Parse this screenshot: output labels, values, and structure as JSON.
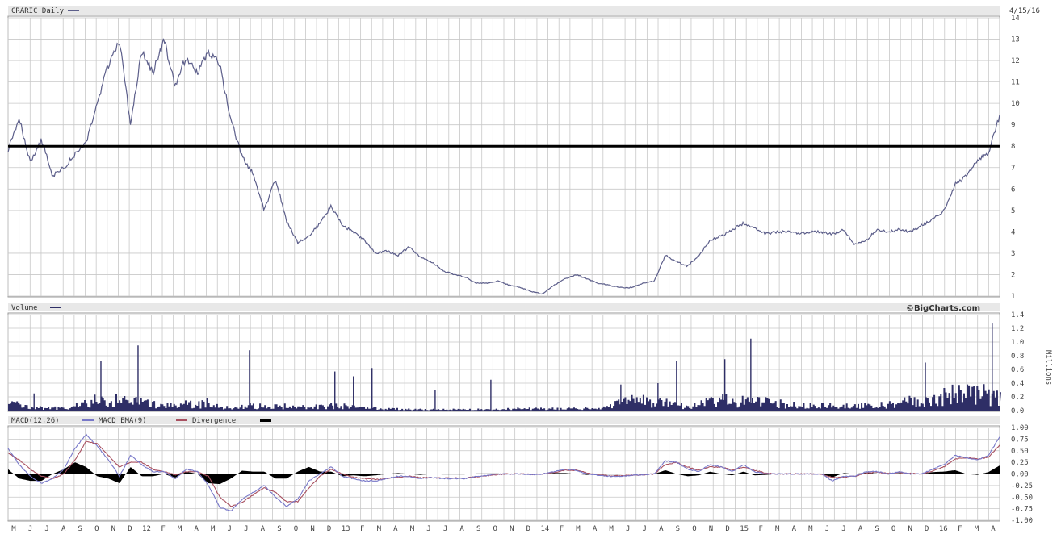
{
  "header": {
    "price_title": "CRARIC Daily",
    "date": "4/15/16",
    "volume_title": "Volume",
    "brand": "©BigCharts.com",
    "macd_title": "MACD(12,26)",
    "macd_ema_title": "MACD EMA(9)",
    "divergence_title": "Divergence",
    "volume_unit": "Millions"
  },
  "colors": {
    "price_line": "#5c5e8a",
    "reference_line": "#000000",
    "volume_bar": "#2e2e66",
    "macd_line": "#7777c8",
    "macd_ema_line": "#a85060",
    "divergence": "#000000",
    "grid": "#c8c8c8",
    "header_bg": "#e8e8e8"
  },
  "chart_data": [
    {
      "type": "line",
      "title": "CRARIC Daily",
      "ylim": [
        1,
        14
      ],
      "yticks": [
        "1",
        "2",
        "3",
        "4",
        "5",
        "6",
        "7",
        "8",
        "9",
        "10",
        "11",
        "12",
        "13",
        "14"
      ],
      "reference_line": 8,
      "grid": true,
      "x": [
        0,
        3,
        6,
        9,
        12,
        15,
        18,
        21,
        24,
        27,
        30,
        33,
        36,
        39,
        42,
        45,
        48,
        51,
        54,
        57,
        60,
        63,
        66,
        69,
        72,
        75,
        78,
        81,
        84,
        87,
        90,
        93,
        96,
        99,
        102,
        105,
        108,
        111,
        114,
        117,
        120,
        123,
        126,
        129,
        132,
        135,
        138,
        141,
        144,
        147,
        150,
        153,
        156,
        159,
        162,
        165,
        168,
        171,
        174,
        177,
        180,
        183,
        186,
        189,
        192,
        195,
        198,
        201,
        204,
        207,
        210,
        213,
        216,
        219,
        222,
        225,
        228,
        231,
        234,
        237,
        240,
        243,
        246,
        249,
        252,
        255,
        258,
        261,
        264,
        267
      ],
      "series": [
        {
          "values": [
            7.8,
            9.3,
            7.2,
            8.3,
            6.6,
            7.0,
            7.6,
            8.1,
            10.0,
            11.8,
            12.9,
            9.0,
            12.5,
            11.4,
            13.0,
            10.8,
            12.2,
            11.4,
            12.4,
            11.8,
            9.2,
            7.5,
            6.7,
            5.0,
            6.5,
            4.5,
            3.5,
            3.8,
            4.4,
            5.2,
            4.3,
            4.0,
            3.6,
            3.0,
            3.1,
            2.9,
            3.3,
            2.8,
            2.6,
            2.2,
            2.0,
            1.9,
            1.6,
            1.6,
            1.7,
            1.5,
            1.4,
            1.2,
            1.1,
            1.5,
            1.8,
            2.0,
            1.8,
            1.6,
            1.5,
            1.4,
            1.4,
            1.6,
            1.7,
            2.9,
            2.6,
            2.4,
            2.9,
            3.6,
            3.8,
            4.1,
            4.4,
            4.2,
            3.9,
            4.0,
            4.0,
            3.9,
            4.0,
            4.0,
            3.9,
            4.1,
            3.4,
            3.6,
            4.1,
            4.0,
            4.1,
            4.0,
            4.3,
            4.6,
            5.0,
            6.2,
            6.6,
            7.3,
            7.7,
            9.4
          ]
        }
      ]
    },
    {
      "type": "bar",
      "title": "Volume",
      "ylabel": "Millions",
      "ylim": [
        0,
        1.4
      ],
      "yticks": [
        "0.0",
        "0.2",
        "0.4",
        "0.6",
        "0.8",
        "1.0",
        "1.2",
        "1.4"
      ],
      "grid": true,
      "base_level": [
        0.12,
        0.05,
        0.04,
        0.07,
        0.17,
        0.16,
        0.16,
        0.07,
        0.1,
        0.12,
        0.04,
        0.08,
        0.06,
        0.08,
        0.06,
        0.08,
        0.04,
        0.03,
        0.025,
        0.02,
        0.02,
        0.02,
        0.02,
        0.03,
        0.03,
        0.03,
        0.04,
        0.04,
        0.16,
        0.16,
        0.11,
        0.07,
        0.17,
        0.15,
        0.15,
        0.11,
        0.08,
        0.08,
        0.07,
        0.09,
        0.1,
        0.15,
        0.18,
        0.27,
        0.28,
        0.2
      ],
      "spikes": [
        {
          "x": 7,
          "value": 0.25
        },
        {
          "x": 25,
          "value": 0.72
        },
        {
          "x": 35,
          "value": 0.95
        },
        {
          "x": 65,
          "value": 0.88
        },
        {
          "x": 88,
          "value": 0.57
        },
        {
          "x": 93,
          "value": 0.5
        },
        {
          "x": 98,
          "value": 0.62
        },
        {
          "x": 115,
          "value": 0.3
        },
        {
          "x": 130,
          "value": 0.45
        },
        {
          "x": 165,
          "value": 0.38
        },
        {
          "x": 175,
          "value": 0.4
        },
        {
          "x": 180,
          "value": 0.72
        },
        {
          "x": 193,
          "value": 0.75
        },
        {
          "x": 200,
          "value": 1.05
        },
        {
          "x": 247,
          "value": 0.7
        },
        {
          "x": 265,
          "value": 1.27
        }
      ]
    },
    {
      "type": "line",
      "title": "MACD(12,26)",
      "ylim": [
        -1.0,
        1.0
      ],
      "yticks": [
        "-1.00",
        "-0.75",
        "-0.50",
        "-0.25",
        "0.00",
        "0.25",
        "0.50",
        "0.75",
        "1.00"
      ],
      "grid": true,
      "x": [
        0,
        3,
        6,
        9,
        12,
        15,
        18,
        21,
        24,
        27,
        30,
        33,
        36,
        39,
        42,
        45,
        48,
        51,
        54,
        57,
        60,
        63,
        66,
        69,
        72,
        75,
        78,
        81,
        84,
        87,
        90,
        93,
        96,
        99,
        102,
        105,
        108,
        111,
        114,
        117,
        120,
        123,
        126,
        129,
        132,
        135,
        138,
        141,
        144,
        147,
        150,
        153,
        156,
        159,
        162,
        165,
        168,
        171,
        174,
        177,
        180,
        183,
        186,
        189,
        192,
        195,
        198,
        201,
        204,
        207,
        210,
        213,
        216,
        219,
        222,
        225,
        228,
        231,
        234,
        237,
        240,
        243,
        246,
        249,
        252,
        255,
        258,
        261,
        264,
        267
      ],
      "series": [
        {
          "name": "MACD(12,26)",
          "values": [
            0.55,
            0.2,
            -0.05,
            -0.2,
            -0.1,
            0.1,
            0.55,
            0.85,
            0.6,
            0.3,
            -0.05,
            0.4,
            0.2,
            0.05,
            0.05,
            -0.1,
            0.1,
            0.05,
            -0.25,
            -0.72,
            -0.8,
            -0.55,
            -0.4,
            -0.25,
            -0.5,
            -0.7,
            -0.55,
            -0.15,
            0.0,
            0.15,
            -0.05,
            -0.1,
            -0.15,
            -0.15,
            -0.1,
            -0.05,
            -0.05,
            -0.1,
            -0.08,
            -0.1,
            -0.1,
            -0.1,
            -0.05,
            -0.03,
            0.0,
            0.0,
            0.0,
            -0.02,
            0.0,
            0.05,
            0.1,
            0.08,
            0.0,
            -0.03,
            -0.05,
            -0.05,
            -0.03,
            -0.02,
            0.0,
            0.28,
            0.25,
            0.1,
            0.05,
            0.2,
            0.15,
            0.05,
            0.2,
            0.05,
            0.0,
            0.0,
            0.0,
            0.0,
            0.0,
            0.0,
            -0.15,
            -0.05,
            -0.05,
            0.05,
            0.05,
            0.0,
            0.05,
            0.0,
            0.0,
            0.1,
            0.2,
            0.4,
            0.35,
            0.3,
            0.4,
            0.8
          ]
        },
        {
          "name": "MACD EMA(9)",
          "values": [
            0.45,
            0.3,
            0.1,
            -0.05,
            -0.1,
            0.0,
            0.3,
            0.7,
            0.65,
            0.4,
            0.15,
            0.25,
            0.25,
            0.1,
            0.05,
            -0.02,
            0.05,
            0.05,
            -0.05,
            -0.5,
            -0.7,
            -0.62,
            -0.45,
            -0.3,
            -0.4,
            -0.6,
            -0.6,
            -0.3,
            -0.05,
            0.1,
            0.0,
            -0.07,
            -0.1,
            -0.12,
            -0.1,
            -0.07,
            -0.05,
            -0.08,
            -0.08,
            -0.09,
            -0.09,
            -0.09,
            -0.06,
            -0.04,
            -0.01,
            0.0,
            0.0,
            -0.01,
            0.0,
            0.03,
            0.08,
            0.08,
            0.02,
            -0.02,
            -0.04,
            -0.04,
            -0.03,
            -0.02,
            0.0,
            0.2,
            0.25,
            0.15,
            0.08,
            0.15,
            0.15,
            0.08,
            0.15,
            0.08,
            0.02,
            0.0,
            0.0,
            0.0,
            0.0,
            0.0,
            -0.08,
            -0.07,
            -0.05,
            0.02,
            0.04,
            0.01,
            0.03,
            0.01,
            0.0,
            0.06,
            0.15,
            0.32,
            0.35,
            0.32,
            0.36,
            0.62
          ]
        }
      ]
    }
  ],
  "x_axis": {
    "labels": [
      "M",
      "J",
      "J",
      "A",
      "S",
      "O",
      "N",
      "D",
      "12",
      "F",
      "M",
      "A",
      "M",
      "J",
      "J",
      "A",
      "S",
      "O",
      "N",
      "D",
      "13",
      "F",
      "M",
      "A",
      "M",
      "J",
      "J",
      "A",
      "S",
      "O",
      "N",
      "D",
      "14",
      "F",
      "M",
      "A",
      "M",
      "J",
      "J",
      "A",
      "S",
      "O",
      "N",
      "D",
      "15",
      "F",
      "M",
      "A",
      "M",
      "J",
      "J",
      "A",
      "S",
      "O",
      "N",
      "D",
      "16",
      "F",
      "M",
      "A"
    ]
  }
}
